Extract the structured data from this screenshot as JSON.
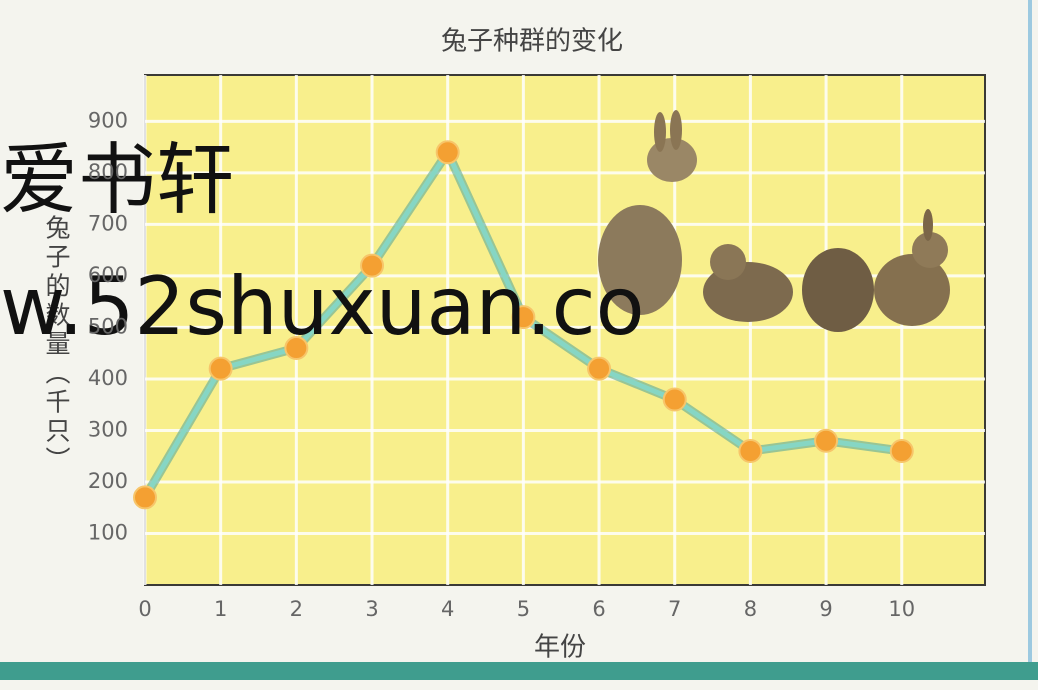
{
  "chart_data": {
    "type": "line",
    "title": "兔子种群的变化",
    "x_label": "年份",
    "y_label": "兔子的数量（千只）",
    "x": [
      0,
      1,
      2,
      3,
      4,
      5,
      6,
      7,
      8,
      9,
      10
    ],
    "values": [
      170,
      420,
      460,
      620,
      840,
      520,
      420,
      360,
      260,
      280,
      260
    ],
    "color": "#86d6c4",
    "marker_color": "#f4a032",
    "xlim": [
      0,
      11.1
    ],
    "xticks": [
      0,
      1,
      2,
      3,
      4,
      5,
      6,
      7,
      8,
      9,
      10
    ],
    "ylim": [
      0,
      990
    ],
    "yticks": [
      100,
      200,
      300,
      400,
      500,
      600,
      700,
      800,
      900
    ],
    "grid": true,
    "watermark": [
      "爱书轩",
      "w.52shuxuan.co"
    ]
  }
}
